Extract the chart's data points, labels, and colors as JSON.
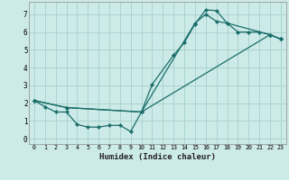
{
  "title": "",
  "xlabel": "Humidex (Indice chaleur)",
  "ylabel": "",
  "bg_color": "#cceae8",
  "grid_color": "#aad4d0",
  "line_color": "#1a6e6a",
  "xlim": [
    -0.5,
    23.5
  ],
  "ylim": [
    -0.3,
    7.7
  ],
  "xticks": [
    0,
    1,
    2,
    3,
    4,
    5,
    6,
    7,
    8,
    9,
    10,
    11,
    12,
    13,
    14,
    15,
    16,
    17,
    18,
    19,
    20,
    21,
    22,
    23
  ],
  "yticks": [
    0,
    1,
    2,
    3,
    4,
    5,
    6,
    7
  ],
  "series": [
    {
      "x": [
        0,
        1,
        2,
        3,
        4,
        5,
        6,
        7,
        8,
        9,
        10,
        11,
        13,
        14,
        15,
        16,
        17,
        18,
        19,
        20,
        21,
        22,
        23
      ],
      "y": [
        2.15,
        1.8,
        1.5,
        1.5,
        0.8,
        0.65,
        0.65,
        0.75,
        0.75,
        0.4,
        1.5,
        3.05,
        4.7,
        5.4,
        6.45,
        7.25,
        7.2,
        6.5,
        6.0,
        6.0,
        6.0,
        5.85,
        5.6
      ]
    },
    {
      "x": [
        0,
        3,
        10,
        15,
        16,
        17,
        18,
        22,
        23
      ],
      "y": [
        2.15,
        1.75,
        1.5,
        6.5,
        7.0,
        6.6,
        6.5,
        5.85,
        5.6
      ]
    },
    {
      "x": [
        0,
        3,
        10,
        22,
        23
      ],
      "y": [
        2.15,
        1.75,
        1.5,
        5.85,
        5.6
      ]
    }
  ]
}
